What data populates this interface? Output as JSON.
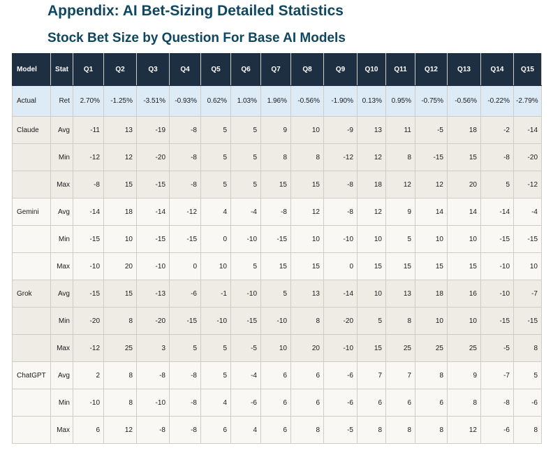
{
  "title": "Appendix: AI Bet-Sizing Detailed Statistics",
  "subtitle": "Stock Bet Size by Question For Base AI Models",
  "table": {
    "headers": [
      "Model",
      "Stat",
      "Q1",
      "Q2",
      "Q3",
      "Q4",
      "Q5",
      "Q6",
      "Q7",
      "Q8",
      "Q9",
      "Q10",
      "Q11",
      "Q12",
      "Q13",
      "Q14",
      "Q15"
    ],
    "actual": {
      "model": "Actual",
      "stat": "Ret",
      "values": [
        "2.70%",
        "-1.25%",
        "-3.51%",
        "-0.93%",
        "0.62%",
        "1.03%",
        "1.96%",
        "-0.56%",
        "-1.90%",
        "0.13%",
        "0.95%",
        "-0.75%",
        "-0.56%",
        "-0.22%",
        "-2.79%"
      ]
    },
    "groups": [
      {
        "model": "Claude",
        "rows": [
          {
            "stat": "Avg",
            "values": [
              "-11",
              "13",
              "-19",
              "-8",
              "5",
              "5",
              "9",
              "10",
              "-9",
              "13",
              "11",
              "-5",
              "18",
              "-2",
              "-14"
            ]
          },
          {
            "stat": "Min",
            "values": [
              "-12",
              "12",
              "-20",
              "-8",
              "5",
              "5",
              "8",
              "8",
              "-12",
              "12",
              "8",
              "-15",
              "15",
              "-8",
              "-20"
            ]
          },
          {
            "stat": "Max",
            "values": [
              "-8",
              "15",
              "-15",
              "-8",
              "5",
              "5",
              "15",
              "15",
              "-8",
              "18",
              "12",
              "12",
              "20",
              "5",
              "-12"
            ]
          }
        ]
      },
      {
        "model": "Gemini",
        "rows": [
          {
            "stat": "Avg",
            "values": [
              "-14",
              "18",
              "-14",
              "-12",
              "4",
              "-4",
              "-8",
              "12",
              "-8",
              "12",
              "9",
              "14",
              "14",
              "-14",
              "-4"
            ]
          },
          {
            "stat": "Min",
            "values": [
              "-15",
              "10",
              "-15",
              "-15",
              "0",
              "-10",
              "-15",
              "10",
              "-10",
              "10",
              "5",
              "10",
              "10",
              "-15",
              "-15"
            ]
          },
          {
            "stat": "Max",
            "values": [
              "-10",
              "20",
              "-10",
              "0",
              "10",
              "5",
              "15",
              "15",
              "0",
              "15",
              "15",
              "15",
              "15",
              "-10",
              "10"
            ]
          }
        ]
      },
      {
        "model": "Grok",
        "rows": [
          {
            "stat": "Avg",
            "values": [
              "-15",
              "15",
              "-13",
              "-6",
              "-1",
              "-10",
              "5",
              "13",
              "-14",
              "10",
              "13",
              "18",
              "16",
              "-10",
              "-7"
            ]
          },
          {
            "stat": "Min",
            "values": [
              "-20",
              "8",
              "-20",
              "-15",
              "-10",
              "-15",
              "-10",
              "8",
              "-20",
              "5",
              "8",
              "10",
              "10",
              "-15",
              "-15"
            ]
          },
          {
            "stat": "Max",
            "values": [
              "-12",
              "25",
              "3",
              "5",
              "5",
              "-5",
              "10",
              "20",
              "-10",
              "15",
              "25",
              "25",
              "25",
              "-5",
              "8"
            ]
          }
        ]
      },
      {
        "model": "ChatGPT",
        "rows": [
          {
            "stat": "Avg",
            "values": [
              "2",
              "8",
              "-8",
              "-8",
              "5",
              "-4",
              "6",
              "6",
              "-6",
              "7",
              "7",
              "8",
              "9",
              "-7",
              "5"
            ]
          },
          {
            "stat": "Min",
            "values": [
              "-10",
              "8",
              "-10",
              "-8",
              "4",
              "-6",
              "6",
              "6",
              "-6",
              "6",
              "6",
              "6",
              "8",
              "-8",
              "-6"
            ]
          },
          {
            "stat": "Max",
            "values": [
              "6",
              "12",
              "-8",
              "-8",
              "6",
              "4",
              "6",
              "8",
              "-5",
              "8",
              "8",
              "8",
              "12",
              "-6",
              "8"
            ]
          }
        ]
      }
    ]
  },
  "colors": {
    "title": "#0f4761",
    "header_bg": "#1e2f42",
    "actual_bg": "#ddebf7",
    "group_a_bg": "#efece6",
    "group_b_bg": "#faf8f4"
  }
}
